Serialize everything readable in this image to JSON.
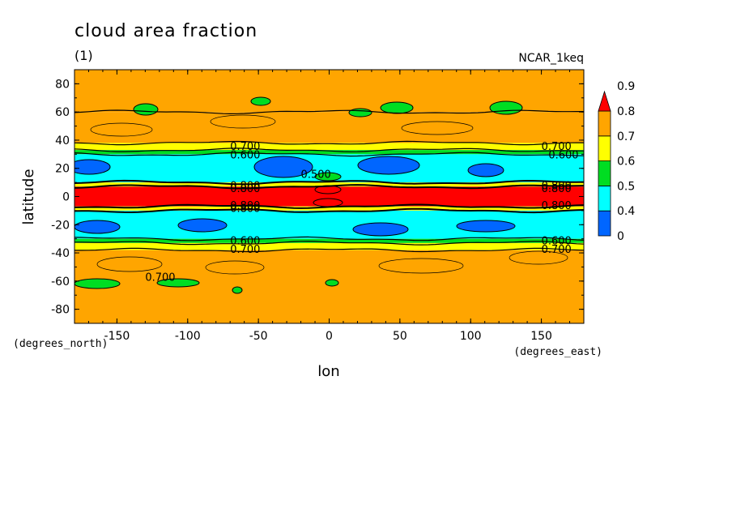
{
  "chart_data": {
    "type": "heatmap",
    "title": "cloud area fraction",
    "subtitle": "(1)",
    "source_label": "NCAR_1keq",
    "xlabel": "lon",
    "ylabel": "latitude",
    "x_units": "(degrees_east)",
    "y_units": "(degrees_north)",
    "xlim": [
      -180,
      180
    ],
    "ylim": [
      -90,
      90
    ],
    "x_ticks": [
      "-150",
      "-100",
      "-50",
      "0",
      "50",
      "100",
      "150"
    ],
    "x_tick_values": [
      -150,
      -100,
      -50,
      0,
      50,
      100,
      150
    ],
    "y_ticks": [
      "80",
      "60",
      "40",
      "20",
      "0",
      "-20",
      "-40",
      "-60",
      "-80"
    ],
    "y_tick_values": [
      80,
      60,
      40,
      20,
      0,
      -20,
      -40,
      -60,
      -80
    ],
    "colorbar": {
      "levels": [
        "0",
        "0.4",
        "0.5",
        "0.6",
        "0.7",
        "0.8",
        "0.9"
      ],
      "colors": [
        "#0066ff",
        "#00ffff",
        "#00dd22",
        "#ffff00",
        "#ffa500",
        "#ff0000"
      ]
    },
    "bands": [
      {
        "lat_min": 60,
        "lat_max": 90,
        "value": 0.75
      },
      {
        "lat_min": 38,
        "lat_max": 60,
        "value": 0.72
      },
      {
        "lat_min": 33,
        "lat_max": 38,
        "value": 0.65
      },
      {
        "lat_min": 30,
        "lat_max": 33,
        "value": 0.55
      },
      {
        "lat_min": 10,
        "lat_max": 30,
        "value": 0.45
      },
      {
        "lat_min": 7,
        "lat_max": 10,
        "value": 0.65
      },
      {
        "lat_min": -7,
        "lat_max": 7,
        "value": 0.85
      },
      {
        "lat_min": -10,
        "lat_max": -7,
        "value": 0.65
      },
      {
        "lat_min": -30,
        "lat_max": -10,
        "value": 0.45
      },
      {
        "lat_min": -33,
        "lat_max": -30,
        "value": 0.55
      },
      {
        "lat_min": -38,
        "lat_max": -33,
        "value": 0.65
      },
      {
        "lat_min": -90,
        "lat_max": -38,
        "value": 0.75
      }
    ],
    "contour_labels": [
      {
        "text": "0.700",
        "lon": -70,
        "lat": 36
      },
      {
        "text": "0.600",
        "lon": -70,
        "lat": 30
      },
      {
        "text": "0.700",
        "lon": 150,
        "lat": 36
      },
      {
        "text": "0.600",
        "lon": 155,
        "lat": 30
      },
      {
        "text": "0.500",
        "lon": -20,
        "lat": 16
      },
      {
        "text": "0.800",
        "lon": -70,
        "lat": 8
      },
      {
        "text": "0.800",
        "lon": -70,
        "lat": 6
      },
      {
        "text": "0.800",
        "lon": 150,
        "lat": 8
      },
      {
        "text": "0.800",
        "lon": 150,
        "lat": 6
      },
      {
        "text": "0.800",
        "lon": -70,
        "lat": -6
      },
      {
        "text": "0.800",
        "lon": -70,
        "lat": -8
      },
      {
        "text": "0.800",
        "lon": 150,
        "lat": -6
      },
      {
        "text": "0.600",
        "lon": -70,
        "lat": -31
      },
      {
        "text": "0.700",
        "lon": -70,
        "lat": -37
      },
      {
        "text": "0.600",
        "lon": 150,
        "lat": -31
      },
      {
        "text": "0.700",
        "lon": 150,
        "lat": -37
      },
      {
        "text": "0.700",
        "lon": -130,
        "lat": -57
      }
    ]
  }
}
